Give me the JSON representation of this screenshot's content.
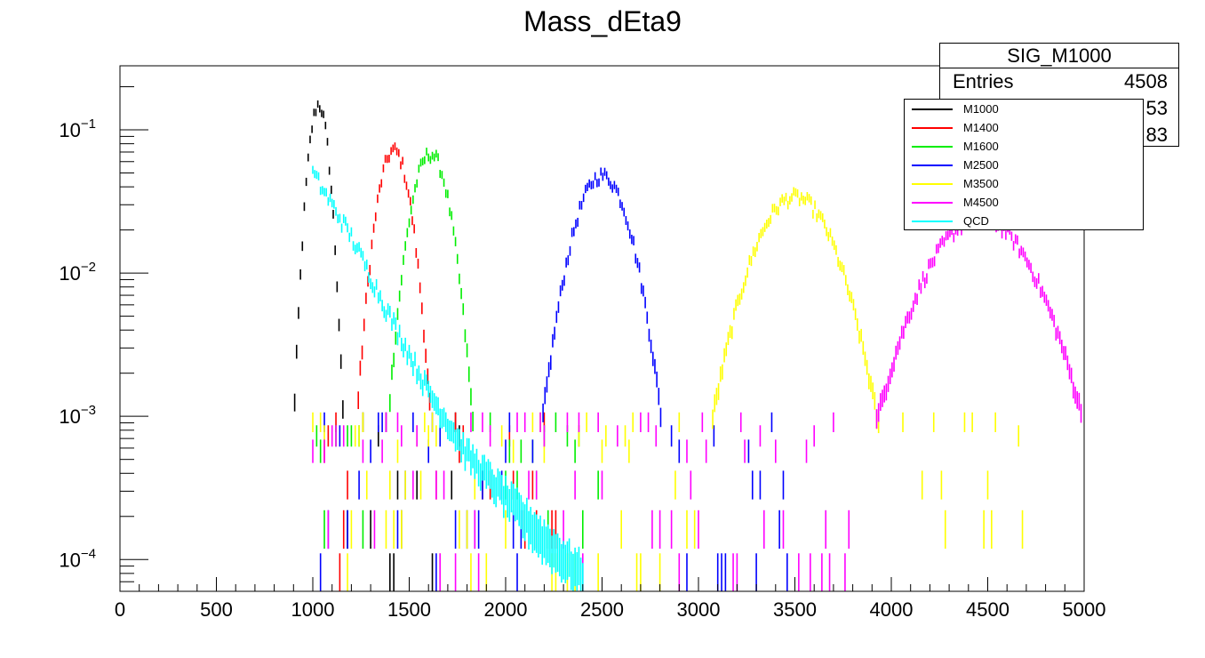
{
  "chart_data": {
    "type": "scatter",
    "title": "Mass_dEta9",
    "xlim": [
      0,
      5000
    ],
    "ylim": [
      6e-05,
      0.28
    ],
    "yscale": "log",
    "x_ticks": [
      "0",
      "500",
      "1000",
      "1500",
      "2000",
      "2500",
      "3000",
      "3500",
      "4000",
      "4500",
      "5000"
    ],
    "y_ticks": [
      {
        "base": "10",
        "exp": "−1",
        "value": 0.1
      },
      {
        "base": "10",
        "exp": "−2",
        "value": 0.01
      },
      {
        "base": "10",
        "exp": "−3",
        "value": 0.001
      },
      {
        "base": "10",
        "exp": "−4",
        "value": 0.0001
      }
    ],
    "series": [
      {
        "name": "M1000",
        "color": "#000000",
        "peak_x": 1030,
        "peak_y": 0.15,
        "start_x": 1000,
        "width": 40
      },
      {
        "name": "M1400",
        "color": "#ff0000",
        "peak_x": 1420,
        "peak_y": 0.072,
        "start_x": 1000,
        "width": 65
      },
      {
        "name": "M1600",
        "color": "#00ee00",
        "peak_x": 1610,
        "peak_y": 0.068,
        "start_x": 1000,
        "width": 75
      },
      {
        "name": "M2500",
        "color": "#0000ff",
        "peak_x": 2500,
        "peak_y": 0.048,
        "start_x": 1000,
        "width": 110
      },
      {
        "name": "M3500",
        "color": "#ffff00",
        "peak_x": 3500,
        "peak_y": 0.034,
        "start_x": 1000,
        "width": 160
      },
      {
        "name": "M4500",
        "color": "#ff00ff",
        "peak_x": 4460,
        "peak_y": 0.024,
        "start_x": 1000,
        "width": 210
      },
      {
        "name": "QCD",
        "color": "#00ffff",
        "points": [
          [
            1000,
            0.05
          ],
          [
            1200,
            0.018
          ],
          [
            1400,
            0.005
          ],
          [
            1600,
            0.0015
          ],
          [
            1800,
            0.00055
          ],
          [
            2000,
            0.00028
          ],
          [
            2200,
            0.00014
          ],
          [
            2400,
            8e-05
          ]
        ]
      }
    ],
    "legend_position": "top-right"
  },
  "stats_box": {
    "title": "SIG_M1000",
    "entries_label": "Entries",
    "entries_value": "4508",
    "row2_value": "53",
    "row3_value": "83"
  }
}
